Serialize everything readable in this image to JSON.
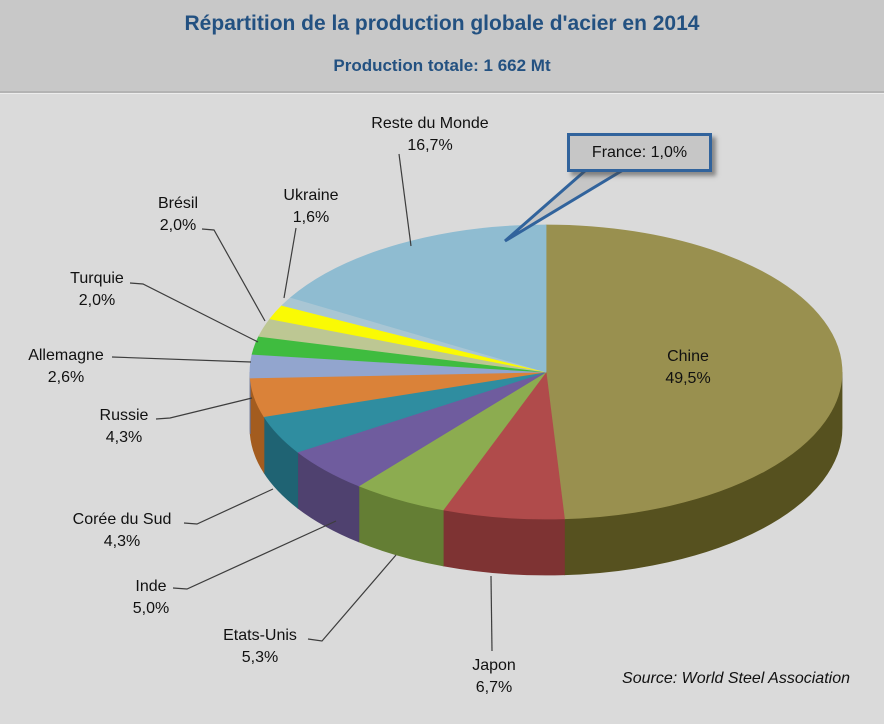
{
  "header": {
    "title": "Répartition de la production globale d'acier en 2014",
    "subtitle": "Production totale: 1 662 Mt"
  },
  "source": "Source: World Steel Association",
  "callout": {
    "text": "France: 1,0%"
  },
  "colors": {
    "header_bg": "#C8C8C8",
    "chart_bg": "#DADADA",
    "title_color": "#235181",
    "label_color": "#111111",
    "leader_line": "#3d3d3d",
    "callout_border": "#31639C",
    "callout_fill": "#C6C6C6"
  },
  "chart_data": {
    "type": "pie",
    "style": "3d",
    "direction": "clockwise",
    "start_angle_deg": 0,
    "title": "Répartition de la production globale d'acier en 2014",
    "total_label": "Production totale: 1 662 Mt",
    "total_value_mt": 1662,
    "slices": [
      {
        "label": "Chine",
        "value": 49.5,
        "value_label": "49,5%",
        "color": "#99904F",
        "side_color": "#56511F"
      },
      {
        "label": "Japon",
        "value": 6.7,
        "value_label": "6,7%",
        "color": "#B04B4B",
        "side_color": "#7E3333"
      },
      {
        "label": "Etats-Unis",
        "value": 5.3,
        "value_label": "5,3%",
        "color": "#8CAC50",
        "side_color": "#647E34"
      },
      {
        "label": "Inde",
        "value": 5.0,
        "value_label": "5,0%",
        "color": "#6F5C9E",
        "side_color": "#4F416F"
      },
      {
        "label": "Corée du Sud",
        "value": 4.3,
        "value_label": "4,3%",
        "color": "#2F8DA0",
        "side_color": "#1F6373"
      },
      {
        "label": "Russie",
        "value": 4.3,
        "value_label": "4,3%",
        "color": "#DA8239",
        "side_color": "#A35C1F"
      },
      {
        "label": "Allemagne",
        "value": 2.6,
        "value_label": "2,6%",
        "color": "#92A5CE",
        "side_color": "#66769E"
      },
      {
        "label": "Turquie",
        "value": 2.0,
        "value_label": "2,0%",
        "color": "#3FBC3F",
        "side_color": "#2A862A"
      },
      {
        "label": "Brésil",
        "value": 2.0,
        "value_label": "2,0%",
        "color": "#BDC793",
        "side_color": "#8D965F"
      },
      {
        "label": "Ukraine",
        "value": 1.6,
        "value_label": "1,6%",
        "color": "#FAFA04",
        "side_color": "#B8B800"
      },
      {
        "label": "France",
        "value": 1.0,
        "value_label": "1,0%",
        "color": "#A9C6D4",
        "side_color": "#7D98A3"
      },
      {
        "label": "Reste du Monde",
        "value": 16.7,
        "value_label": "16,7%",
        "color": "#8FBCD1",
        "side_color": "#648EA3"
      }
    ]
  }
}
